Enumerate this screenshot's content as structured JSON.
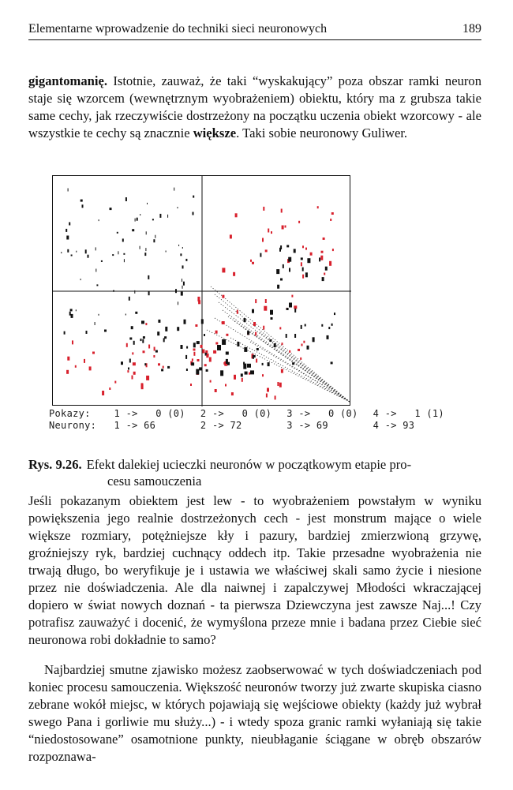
{
  "header": {
    "running_title": "Elementarne wprowadzenie do techniki sieci neuronowych",
    "page_number": "189"
  },
  "paragraph1": {
    "bold_start": "gigantomanię.",
    "text_a": " Istotnie, zauważ, że taki “wyskakujący” poza obszar ramki neuron staje się wzorcem (wewnętrznym wyobrażeniem) obiektu, który ma z grubsza takie same cechy, jak rzeczywiście dostrzeżony na początku uczenia obiekt wzorcowy - ale wszystkie te cechy są znacznie ",
    "bold_mid": "większe",
    "text_b": ". Taki sobie neuronowy Guliwer."
  },
  "figure": {
    "colors": {
      "black_points": "#111111",
      "red_points": "#d8202c",
      "frame": "#111111"
    },
    "legend": {
      "row1_label": "Pokazy:",
      "row1_cells": [
        "1 ->   0 (0)",
        "2 ->   0 (0)",
        "3 ->   0 (0)",
        "4 ->   1 (1)"
      ],
      "row2_label": "Neurony:",
      "row2_cells": [
        "1 -> 66",
        "2 -> 72",
        "3 -> 69",
        "4 -> 93"
      ]
    }
  },
  "caption": {
    "number": "Rys. 9.26.",
    "line1": "Efekt dalekiej ucieczki neuronów w początkowym etapie pro-",
    "line2": "cesu samouczenia"
  },
  "paragraph2": {
    "text": "Jeśli pokazanym obiektem jest lew - to wyobrażeniem powstałym w wyniku powiększenia jego realnie dostrzeżonych cech - jest monstrum mające o wiele większe rozmiary, potężniejsze kły i pazury, bardziej zmierzwioną grzywę, groźniejszy ryk, bardziej cuchnący oddech itp. Takie przesadne wyobrażenia nie trwają długo, bo weryfikuje je i ustawia we właściwej skali samo życie i niesione przez nie doświadczenia. Ale dla naiwnej i zapalczywej Młodości wkraczającej dopiero w świat nowych doznań - ta pierwsza Dziewczyna jest zawsze Naj...! Czy potrafisz zauważyć i docenić, że wymyślona przeze mnie i badana przez Ciebie sieć neuronowa robi dokładnie to samo?"
  },
  "paragraph3": {
    "text": "Najbardziej smutne zjawisko możesz zaobserwować w tych doświadczeniach pod koniec procesu samouczenia. Większość neuronów tworzy już zwarte skupiska ciasno zebrane wokół miejsc, w których pojawiają się wejściowe obiekty (każdy już wybrał swego Pana i gorliwie mu służy...) - i wtedy spoza granic ramki wyłaniają się takie “niedostosowane” osamotnione punkty, nieubłaganie ściągane w obręb obszarów rozpoznawa-"
  }
}
